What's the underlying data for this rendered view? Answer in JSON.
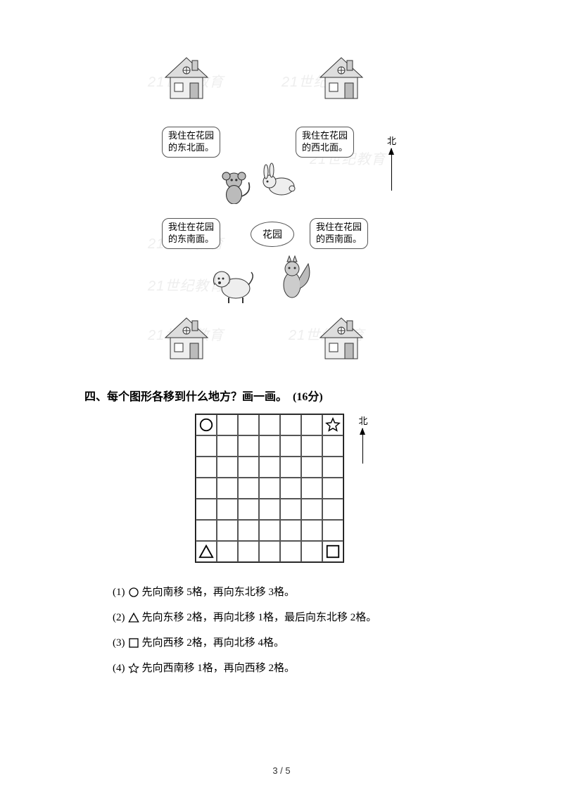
{
  "figure1": {
    "bubbles": {
      "monkey": "我住在花园\n的东北面。",
      "rabbit": "我住在花园\n的西北面。",
      "dog": "我住在花园\n的东南面。",
      "squirrel": "我住在花园\n的西南面。"
    },
    "garden_label": "花园",
    "north_label": "北",
    "watermark_text": "21世纪教育"
  },
  "question4": {
    "heading": "四、每个图形各移到什么地方？画一画。　(16分)",
    "north_label": "北",
    "grid": {
      "size": 7,
      "shapes": {
        "circle": {
          "row": 0,
          "col": 0
        },
        "star": {
          "row": 0,
          "col": 6
        },
        "triangle": {
          "row": 6,
          "col": 0
        },
        "square": {
          "row": 6,
          "col": 6
        }
      }
    },
    "items": [
      {
        "n": "(1)",
        "shape": "circle",
        "text": "先向南移 5格，再向东北移 3格。"
      },
      {
        "n": "(2)",
        "shape": "triangle",
        "text": "先向东移 2格，再向北移 1格，最后向东北移 2格。"
      },
      {
        "n": "(3)",
        "shape": "square",
        "text": "先向西移 2格，再向北移 4格。"
      },
      {
        "n": "(4)",
        "shape": "star",
        "text": "先向西南移 1格，再向西移 2格。"
      }
    ]
  },
  "page_number": "3 / 5",
  "colors": {
    "text": "#000000",
    "border": "#555555",
    "watermark": "#eeeeee",
    "background": "#ffffff"
  }
}
